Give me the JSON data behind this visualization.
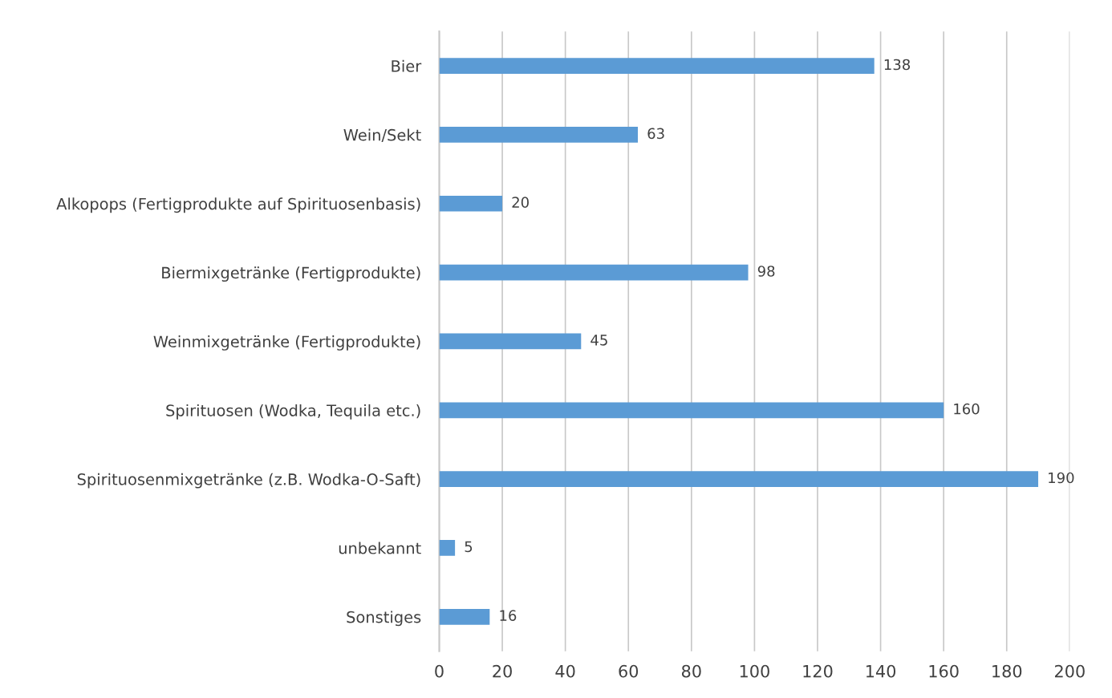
{
  "chart_data": {
    "type": "bar",
    "orientation": "horizontal",
    "categories": [
      "Bier",
      "Wein/Sekt",
      "Alkopops (Fertigprodukte auf Spirituosenbasis)",
      "Biermixgetränke (Fertigprodukte)",
      "Weinmixgetränke (Fertigprodukte)",
      "Spirituosen (Wodka, Tequila etc.)",
      "Spirituosenmixgetränke (z.B. Wodka-O-Saft)",
      "unbekannt",
      "Sonstiges"
    ],
    "values": [
      138,
      63,
      20,
      98,
      45,
      160,
      190,
      5,
      16
    ],
    "color": "#5b9bd5",
    "xlim": [
      0,
      200
    ],
    "xticks": [
      0,
      20,
      40,
      60,
      80,
      100,
      120,
      140,
      160,
      180,
      200
    ],
    "grid": "x",
    "data_labels": true
  }
}
